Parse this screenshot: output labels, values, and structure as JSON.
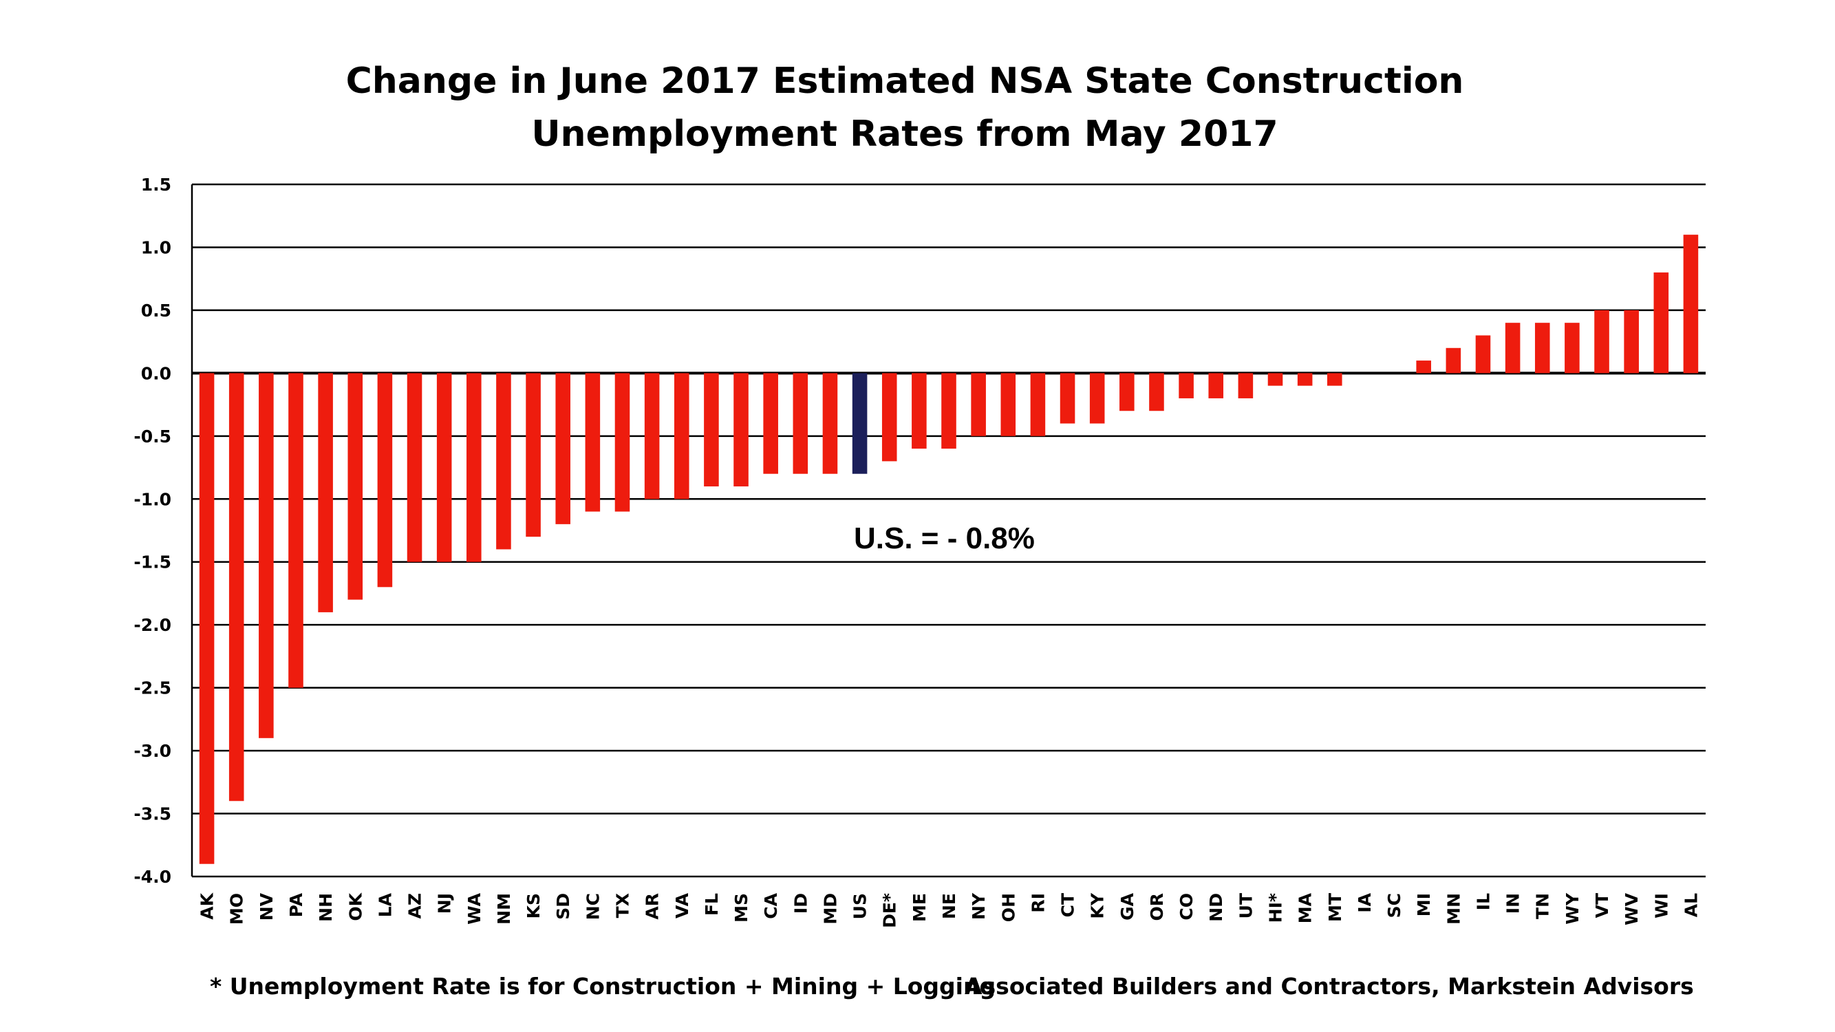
{
  "chart_data": {
    "type": "bar",
    "title": [
      "Change in June 2017 Estimated NSA State Construction",
      "Unemployment Rates from May 2017"
    ],
    "xlabel": "",
    "ylabel": "",
    "ylim": [
      -4.0,
      1.5
    ],
    "yticks": [
      "1.5",
      "1.0",
      "0.5",
      "0.0",
      "-0.5",
      "-1.0",
      "-1.5",
      "-2.0",
      "-2.5",
      "-3.0",
      "-3.5",
      "-4.0"
    ],
    "grid": true,
    "categories": [
      "AK",
      "MO",
      "NV",
      "PA",
      "NH",
      "OK",
      "LA",
      "AZ",
      "NJ",
      "WA",
      "NM",
      "KS",
      "SD",
      "NC",
      "TX",
      "AR",
      "VA",
      "FL",
      "MS",
      "CA",
      "ID",
      "MD",
      "US",
      "DE*",
      "ME",
      "NE",
      "NY",
      "OH",
      "RI",
      "CT",
      "KY",
      "GA",
      "OR",
      "CO",
      "ND",
      "UT",
      "HI*",
      "MA",
      "MT",
      "IA",
      "SC",
      "MI",
      "MN",
      "IL",
      "IN",
      "TN",
      "WY",
      "VT",
      "WV",
      "WI",
      "AL"
    ],
    "values": [
      -3.9,
      -3.4,
      -2.9,
      -2.5,
      -1.9,
      -1.8,
      -1.7,
      -1.5,
      -1.5,
      -1.5,
      -1.4,
      -1.3,
      -1.2,
      -1.1,
      -1.1,
      -1.0,
      -1.0,
      -0.9,
      -0.9,
      -0.8,
      -0.8,
      -0.8,
      -0.8,
      -0.7,
      -0.6,
      -0.6,
      -0.5,
      -0.5,
      -0.5,
      -0.4,
      -0.4,
      -0.3,
      -0.3,
      -0.2,
      -0.2,
      -0.2,
      -0.1,
      -0.1,
      -0.1,
      0.0,
      0.0,
      0.1,
      0.2,
      0.3,
      0.4,
      0.4,
      0.4,
      0.5,
      0.5,
      0.8,
      1.1
    ],
    "highlight_category": "US",
    "colors": {
      "bar": "#ee1c0e",
      "highlight": "#1b1f5a",
      "grid": "#000000"
    },
    "annotation": "U.S. = - 0.8%",
    "footnote_left": "* Unemployment Rate is for Construction + Mining + Logging",
    "footnote_right": "Associated Builders and Contractors, Markstein Advisors"
  }
}
